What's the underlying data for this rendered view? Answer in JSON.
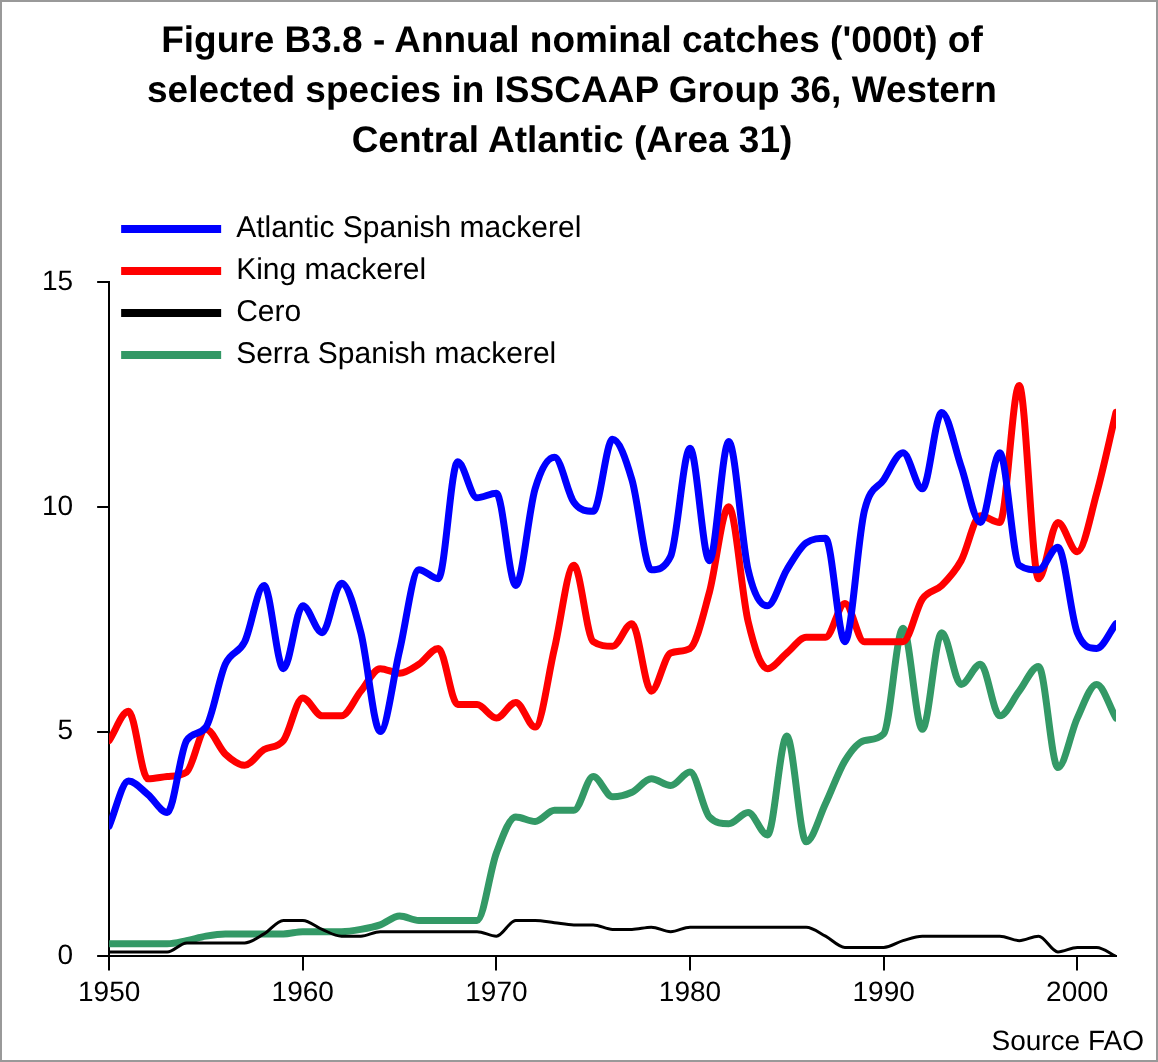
{
  "chart_data": {
    "type": "line",
    "title": "Figure B3.8 - Annual nominal catches ('000t) of selected species in ISSCAAP Group 36, Western Central Atlantic (Area 31)",
    "x": [
      1950,
      1951,
      1952,
      1953,
      1954,
      1955,
      1956,
      1957,
      1958,
      1959,
      1960,
      1961,
      1962,
      1963,
      1964,
      1965,
      1966,
      1967,
      1968,
      1969,
      1970,
      1971,
      1972,
      1973,
      1974,
      1975,
      1976,
      1977,
      1978,
      1979,
      1980,
      1981,
      1982,
      1983,
      1984,
      1985,
      1986,
      1987,
      1988,
      1989,
      1990,
      1991,
      1992,
      1993,
      1994,
      1995,
      1996,
      1997,
      1998,
      1999,
      2000,
      2001,
      2002
    ],
    "series": [
      {
        "name": "Atlantic Spanish mackerel",
        "color": "#0000ff",
        "values": [
          2.9,
          3.9,
          3.6,
          3.2,
          4.8,
          5.1,
          6.5,
          7.0,
          8.25,
          6.4,
          7.8,
          7.2,
          8.3,
          7.2,
          5.0,
          6.8,
          8.6,
          8.4,
          11.0,
          10.2,
          10.3,
          8.25,
          10.4,
          11.1,
          10.1,
          9.9,
          11.5,
          10.6,
          8.6,
          8.9,
          11.3,
          8.8,
          11.45,
          8.6,
          7.8,
          8.6,
          9.2,
          9.3,
          7.0,
          9.9,
          10.6,
          11.2,
          10.4,
          12.1,
          10.9,
          9.65,
          11.2,
          8.7,
          8.6,
          9.1,
          7.2,
          6.85,
          7.4
        ]
      },
      {
        "name": "King mackerel",
        "color": "#ff0000",
        "values": [
          4.8,
          5.45,
          3.95,
          4.0,
          4.1,
          5.05,
          4.5,
          4.25,
          4.6,
          4.8,
          5.75,
          5.35,
          5.35,
          5.9,
          6.4,
          6.3,
          6.5,
          6.85,
          5.6,
          5.6,
          5.3,
          5.65,
          5.1,
          6.85,
          8.7,
          7.0,
          6.9,
          7.4,
          5.9,
          6.75,
          6.85,
          8.1,
          10.0,
          7.45,
          6.4,
          6.75,
          7.1,
          7.1,
          7.85,
          7.0,
          7.0,
          7.0,
          7.95,
          8.25,
          8.8,
          9.8,
          9.65,
          12.7,
          8.4,
          9.65,
          9.0,
          10.3,
          12.1
        ]
      },
      {
        "name": "Cero",
        "color": "#000000",
        "values": [
          0.1,
          0.1,
          0.1,
          0.1,
          0.3,
          0.3,
          0.3,
          0.3,
          0.5,
          0.8,
          0.8,
          0.6,
          0.45,
          0.45,
          0.55,
          0.55,
          0.55,
          0.55,
          0.55,
          0.55,
          0.45,
          0.8,
          0.8,
          0.75,
          0.7,
          0.7,
          0.6,
          0.6,
          0.65,
          0.55,
          0.65,
          0.65,
          0.65,
          0.65,
          0.65,
          0.65,
          0.65,
          0.45,
          0.2,
          0.2,
          0.2,
          0.35,
          0.45,
          0.45,
          0.45,
          0.45,
          0.45,
          0.35,
          0.45,
          0.1,
          0.2,
          0.2,
          0
        ]
      },
      {
        "name": "Serra Spanish mackerel",
        "color": "#339966",
        "values": [
          0.28,
          0.28,
          0.28,
          0.28,
          0.35,
          0.45,
          0.5,
          0.5,
          0.5,
          0.5,
          0.55,
          0.55,
          0.55,
          0.6,
          0.7,
          0.9,
          0.8,
          0.8,
          0.8,
          0.8,
          2.3,
          3.1,
          3.0,
          3.25,
          3.25,
          4.0,
          3.55,
          3.65,
          3.95,
          3.8,
          4.1,
          3.1,
          2.95,
          3.2,
          2.7,
          4.9,
          2.55,
          3.4,
          4.35,
          4.8,
          4.95,
          7.3,
          5.05,
          7.2,
          6.05,
          6.5,
          5.35,
          5.9,
          6.45,
          4.2,
          5.3,
          6.05,
          5.3
        ]
      }
    ],
    "xlim": [
      1950,
      2002
    ],
    "xticks": [
      1950,
      1960,
      1970,
      1980,
      1990,
      2000
    ],
    "ylim": [
      0,
      15
    ],
    "yticks": [
      0,
      5,
      10,
      15
    ],
    "grid": false,
    "legend": "top left",
    "marker": "none",
    "line_style": "solid",
    "annotations": [
      "Source FAO"
    ]
  }
}
